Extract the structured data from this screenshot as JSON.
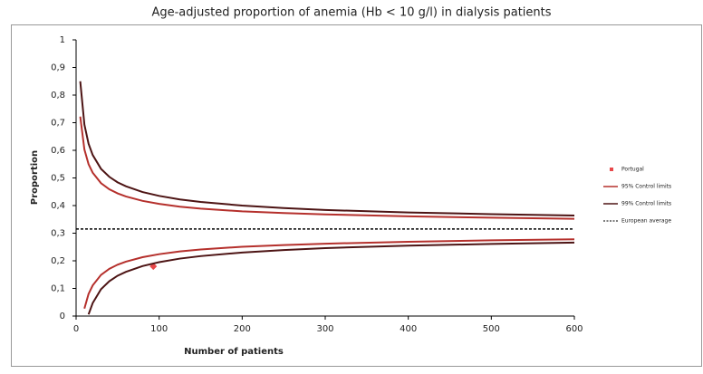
{
  "chart_data": {
    "type": "line",
    "title": "Age-adjusted proportion of anemia (Hb < 10 g/l) in dialysis patients",
    "x_label": "Number of patients",
    "y_label": "Proportion",
    "xlim": [
      0,
      600
    ],
    "xticks": [
      0,
      100,
      200,
      300,
      400,
      500,
      600
    ],
    "ylim": [
      0,
      1
    ],
    "yticks": [
      0,
      {
        "value": 0.1,
        "label": "0,1"
      },
      {
        "value": 0.2,
        "label": "0,2"
      },
      {
        "value": 0.3,
        "label": "0,3"
      },
      {
        "value": 0.4,
        "label": "0,4"
      },
      {
        "value": 0.5,
        "label": "0,5"
      },
      {
        "value": 0.6,
        "label": "0,6"
      },
      {
        "value": 0.7,
        "label": "0,7"
      },
      {
        "value": 0.8,
        "label": "0,8"
      },
      {
        "value": 0.9,
        "label": "0,9"
      },
      1
    ],
    "grid": false,
    "legend": "right",
    "series": [
      {
        "name": "Portugal",
        "kind": "scatter",
        "color": "#e8484a",
        "x": [
          93
        ],
        "values": [
          0.18
        ]
      },
      {
        "name": "95% Control limits",
        "kind": "band",
        "color": "#b5302c",
        "x": [
          5,
          10,
          15,
          20,
          30,
          40,
          50,
          60,
          80,
          100,
          125,
          150,
          200,
          250,
          300,
          400,
          500,
          600
        ],
        "upper": [
          0.722,
          0.603,
          0.55,
          0.519,
          0.481,
          0.459,
          0.444,
          0.433,
          0.417,
          0.406,
          0.396,
          0.389,
          0.379,
          0.373,
          0.368,
          0.361,
          0.356,
          0.352
        ],
        "lower": [
          null,
          0.027,
          0.08,
          0.111,
          0.149,
          0.171,
          0.186,
          0.197,
          0.213,
          0.224,
          0.234,
          0.241,
          0.251,
          0.257,
          0.262,
          0.269,
          0.274,
          0.278
        ]
      },
      {
        "name": "99% Control limits",
        "kind": "band",
        "color": "#4d1414",
        "x": [
          5,
          10,
          15,
          20,
          30,
          40,
          50,
          60,
          80,
          100,
          125,
          150,
          200,
          250,
          300,
          400,
          500,
          600
        ],
        "upper": [
          0.85,
          0.693,
          0.624,
          0.583,
          0.533,
          0.504,
          0.484,
          0.47,
          0.449,
          0.435,
          0.422,
          0.413,
          0.4,
          0.391,
          0.384,
          0.375,
          0.369,
          0.364
        ],
        "lower": [
          null,
          null,
          0.006,
          0.047,
          0.097,
          0.126,
          0.146,
          0.16,
          0.181,
          0.195,
          0.208,
          0.217,
          0.23,
          0.239,
          0.246,
          0.255,
          0.261,
          0.266
        ]
      },
      {
        "name": "European average",
        "kind": "dashed",
        "color": "#000000",
        "x": [
          0,
          600
        ],
        "values": [
          0.315,
          0.315
        ]
      }
    ]
  }
}
